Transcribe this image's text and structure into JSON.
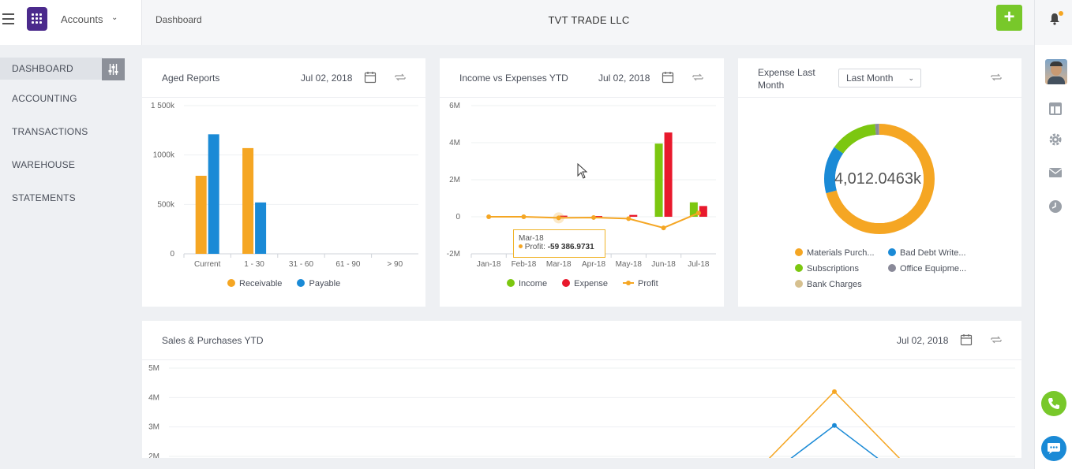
{
  "header": {
    "accounts_label": "Accounts",
    "breadcrumb": "Dashboard",
    "company": "TVT TRADE LLC",
    "add_label": "+"
  },
  "sidebar": {
    "items": [
      {
        "label": "DASHBOARD"
      },
      {
        "label": "ACCOUNTING"
      },
      {
        "label": "TRANSACTIONS"
      },
      {
        "label": "WAREHOUSE"
      },
      {
        "label": "STATEMENTS"
      }
    ]
  },
  "icons": {
    "menu": "hamburger-icon",
    "logo": "app-logo",
    "bell": "bell-icon",
    "calendar": "calendar-icon",
    "refresh": "refresh-icon",
    "phone": "phone-icon",
    "chat": "chat-icon"
  },
  "colors": {
    "accent_green": "#78c82a",
    "orange": "#f5a623",
    "blue": "#1a8ad6",
    "red": "#e8192c",
    "lime": "#7cc710",
    "gray": "#8a8a99",
    "tan": "#d6c08f"
  },
  "aged_reports": {
    "title": "Aged Reports",
    "date": "Jul 02, 2018",
    "chart_data": {
      "type": "bar",
      "categories": [
        "Current",
        "1 - 30",
        "31 - 60",
        "61 - 90",
        "> 90"
      ],
      "series": [
        {
          "name": "Receivable",
          "color": "#f5a623",
          "values": [
            790000,
            1070000,
            0,
            0,
            0
          ]
        },
        {
          "name": "Payable",
          "color": "#1a8ad6",
          "values": [
            1210000,
            520000,
            0,
            0,
            0
          ]
        }
      ],
      "ylim": [
        0,
        1500000
      ],
      "yticks": [
        "0",
        "500k",
        "1000k",
        "1 500k"
      ],
      "legend": "bottom"
    }
  },
  "income_expenses": {
    "title": "Income vs Expenses YTD",
    "date": "Jul 02, 2018",
    "chart_data": {
      "type": "bar",
      "categories": [
        "Jan-18",
        "Feb-18",
        "Mar-18",
        "Apr-18",
        "May-18",
        "Jun-18",
        "Jul-18"
      ],
      "series": [
        {
          "name": "Income",
          "color": "#7cc710",
          "values": [
            0,
            0,
            0,
            0,
            0,
            3950000,
            780000
          ]
        },
        {
          "name": "Expense",
          "color": "#e8192c",
          "values": [
            0,
            0,
            60000,
            40000,
            100000,
            4550000,
            580000
          ]
        },
        {
          "name": "Profit",
          "color": "#f5a623",
          "type": "line",
          "values": [
            0,
            0,
            -59386.9731,
            -40000,
            -100000,
            -600000,
            200000
          ]
        }
      ],
      "ylim": [
        -2000000,
        6000000
      ],
      "yticks": [
        "-2M",
        "0",
        "2M",
        "4M",
        "6M"
      ],
      "legend": "bottom",
      "tooltip": {
        "category": "Mar-18",
        "label": "Profit:",
        "value": "-59 386.9731"
      }
    }
  },
  "expense_last_month": {
    "title": "Expense Last Month",
    "select_value": "Last Month",
    "center_value": "4,012.0463k",
    "chart_data": {
      "type": "pie",
      "labels": [
        "Materials Purch...",
        "Bad Debt Write...",
        "Subscriptions",
        "Office Equipme...",
        "Bank Charges"
      ],
      "colors": [
        "#f5a623",
        "#1a8ad6",
        "#7cc710",
        "#8a8a99",
        "#d6c08f"
      ],
      "values": [
        71,
        14,
        14,
        1.2,
        0.1
      ],
      "legend": "bottom"
    }
  },
  "sales_purchases": {
    "title": "Sales & Purchases YTD",
    "date": "Jul 02, 2018",
    "chart_data": {
      "type": "line",
      "yticks": [
        "2M",
        "3M",
        "4M",
        "5M"
      ],
      "ylim": [
        2000000,
        5000000
      ],
      "series": [
        {
          "color": "#f5a623",
          "peak": 4200000
        },
        {
          "color": "#1a8ad6",
          "peak": 3050000
        }
      ]
    }
  }
}
